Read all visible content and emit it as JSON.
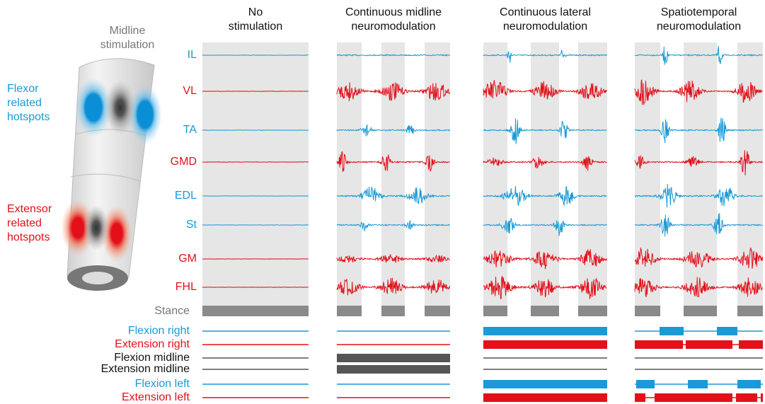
{
  "figure": {
    "cord_title": "Midline stimulation",
    "flexor_label": "Flexor related hotspots",
    "extensor_label": "Extensor related hotspots",
    "columns": [
      "No stimulation",
      "Continuous midline neuromodulation",
      "Continuous lateral neuromodulation",
      "Spatiotemporal neuromodulation"
    ],
    "muscles": [
      {
        "name": "IL",
        "color": "#1a9ad6"
      },
      {
        "name": "VL",
        "color": "#e3101a"
      },
      {
        "name": "TA",
        "color": "#1a9ad6"
      },
      {
        "name": "GMD",
        "color": "#e3101a"
      },
      {
        "name": "EDL",
        "color": "#1a9ad6"
      },
      {
        "name": "St",
        "color": "#1a9ad6"
      },
      {
        "name": "GM",
        "color": "#e3101a"
      },
      {
        "name": "FHL",
        "color": "#e3101a"
      }
    ],
    "stance_label": "Stance",
    "channels": [
      {
        "name": "Flexion right",
        "color": "#1a9ad6"
      },
      {
        "name": "Extension right",
        "color": "#e3101a"
      },
      {
        "name": "Flexion midline",
        "color": "#111111"
      },
      {
        "name": "Extension midline",
        "color": "#111111"
      },
      {
        "name": "Flexion left",
        "color": "#1a9ad6"
      },
      {
        "name": "Extension left",
        "color": "#e3101a"
      }
    ]
  }
}
